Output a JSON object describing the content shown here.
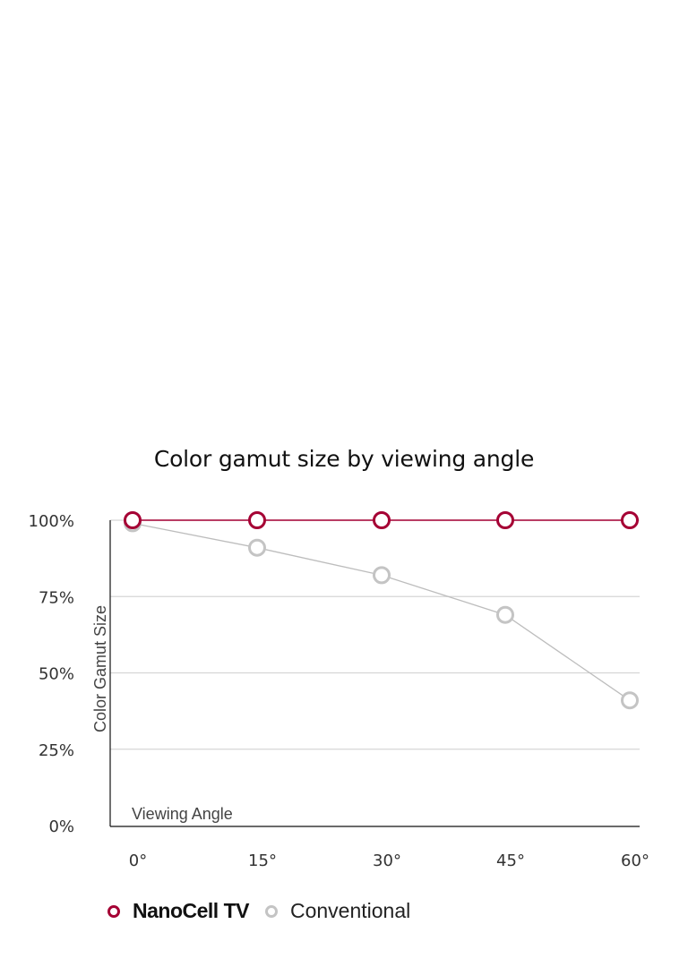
{
  "chart_data": {
    "type": "line",
    "title": "Color gamut size by viewing angle",
    "xlabel": "Viewing Angle",
    "ylabel": "Color Gamut Size",
    "categories": [
      "0°",
      "15°",
      "30°",
      "45°",
      "60°"
    ],
    "y_ticks": [
      "100%",
      "75%",
      "50%",
      "25%",
      "0%"
    ],
    "ylim": [
      0,
      100
    ],
    "grid": true,
    "legend_position": "bottom-left",
    "series": [
      {
        "name": "NanoCell TV",
        "color": "#a50034",
        "values": [
          100,
          100,
          100,
          100,
          100
        ]
      },
      {
        "name": "Conventional",
        "color": "#bbbbbb",
        "values": [
          99,
          91,
          82,
          69,
          41
        ]
      }
    ]
  },
  "legend": {
    "items": [
      {
        "label": "NanoCell TV",
        "color": "#a50034"
      },
      {
        "label": "Conventional",
        "color": "#bbbbbb"
      }
    ]
  }
}
